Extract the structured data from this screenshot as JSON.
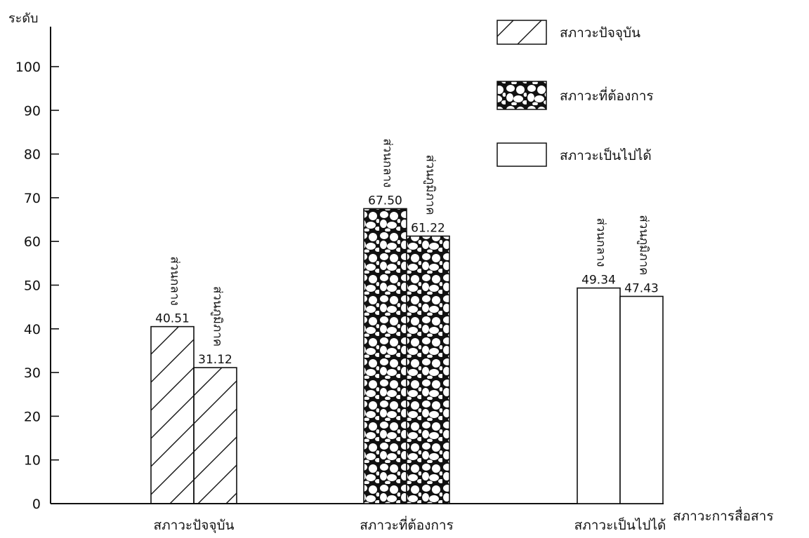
{
  "chart_data": {
    "type": "bar",
    "ylabel": "ระดับ",
    "xlabel": "สภาวะการสื่อสาร",
    "ylim": [
      0,
      100
    ],
    "yticks": [
      "0",
      "10",
      "20",
      "30",
      "40",
      "50",
      "60",
      "70",
      "80",
      "90",
      "100"
    ],
    "categories": [
      "สภาวะปัจจุบัน",
      "สภาวะที่ต้องการ",
      "สภาวะเป็นไปได้"
    ],
    "series": [
      {
        "name": "ส่วนกลาง",
        "values": [
          40.51,
          67.5,
          49.34
        ],
        "labels": [
          "40.51",
          "67.50",
          "49.34"
        ]
      },
      {
        "name": "ส่วนภูมิภาค",
        "values": [
          31.12,
          61.22,
          47.43
        ],
        "labels": [
          "31.12",
          "61.22",
          "47.43"
        ]
      }
    ],
    "fill_patterns": [
      "diagonal-hatch",
      "pebble-texture",
      "plain-white"
    ],
    "legend": {
      "placement": "top-right",
      "entries": [
        {
          "label": "สภาวะปัจจุบัน",
          "pattern": "diagonal-hatch"
        },
        {
          "label": "สภาวะที่ต้องการ",
          "pattern": "pebble-texture"
        },
        {
          "label": "สภาวะเป็นไปได้",
          "pattern": "plain-white"
        }
      ]
    },
    "grid": false
  },
  "colors": {
    "ink": "#111111",
    "background": "#ffffff"
  }
}
